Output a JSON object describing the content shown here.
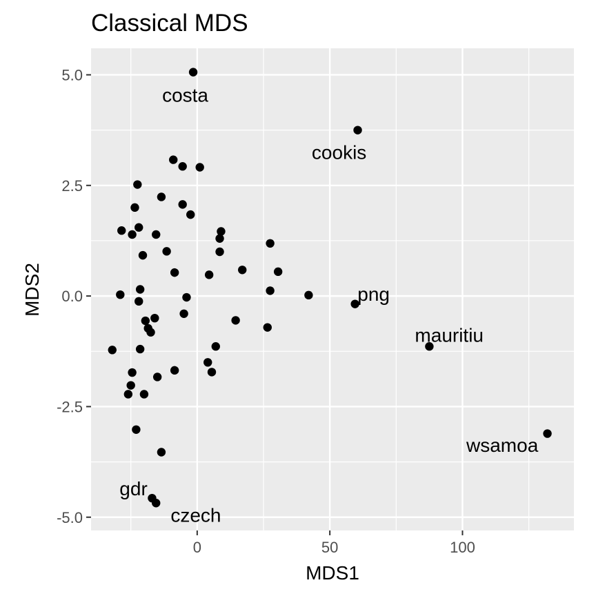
{
  "chart_data": {
    "type": "scatter",
    "title": "Classical MDS",
    "xlabel": "MDS1",
    "ylabel": "MDS2",
    "xlim": [
      -40,
      142
    ],
    "ylim": [
      -5.3,
      5.6
    ],
    "grid": true,
    "x_ticks": [
      0,
      50,
      100
    ],
    "y_ticks": [
      5.0,
      2.5,
      0.0,
      -2.5,
      -5.0
    ],
    "x_tick_labels": [
      "0",
      "50",
      "100"
    ],
    "y_tick_labels": [
      "5.0",
      "2.5",
      "0.0",
      "-2.5",
      "-5.0"
    ],
    "colors": {
      "panel": "#ebebeb",
      "grid_major": "#ffffff",
      "point": "#000000",
      "tick": "#333333"
    },
    "points": [
      {
        "x": -1.5,
        "y": 5.06
      },
      {
        "x": 60.5,
        "y": 3.75
      },
      {
        "x": -9.0,
        "y": 3.08
      },
      {
        "x": -5.5,
        "y": 2.93
      },
      {
        "x": 1.0,
        "y": 2.91
      },
      {
        "x": -22.5,
        "y": 2.52
      },
      {
        "x": -13.5,
        "y": 2.24
      },
      {
        "x": -23.5,
        "y": 2.0
      },
      {
        "x": -5.5,
        "y": 2.07
      },
      {
        "x": -2.5,
        "y": 1.84
      },
      {
        "x": -22.0,
        "y": 1.55
      },
      {
        "x": -28.5,
        "y": 1.48
      },
      {
        "x": -24.5,
        "y": 1.39
      },
      {
        "x": -15.5,
        "y": 1.39
      },
      {
        "x": 9.0,
        "y": 1.46
      },
      {
        "x": 8.5,
        "y": 1.3
      },
      {
        "x": 27.5,
        "y": 1.19
      },
      {
        "x": -11.5,
        "y": 1.01
      },
      {
        "x": 8.5,
        "y": 1.0
      },
      {
        "x": -20.5,
        "y": 0.92
      },
      {
        "x": 17.0,
        "y": 0.59
      },
      {
        "x": 30.5,
        "y": 0.55
      },
      {
        "x": -8.5,
        "y": 0.53
      },
      {
        "x": 4.5,
        "y": 0.48
      },
      {
        "x": -21.5,
        "y": 0.15
      },
      {
        "x": 27.5,
        "y": 0.12
      },
      {
        "x": -29.0,
        "y": 0.03
      },
      {
        "x": -4.0,
        "y": -0.03
      },
      {
        "x": 42.0,
        "y": 0.02
      },
      {
        "x": 59.5,
        "y": -0.18
      },
      {
        "x": -22.0,
        "y": -0.12
      },
      {
        "x": -5.0,
        "y": -0.4
      },
      {
        "x": -16.0,
        "y": -0.5
      },
      {
        "x": -19.5,
        "y": -0.56
      },
      {
        "x": 14.5,
        "y": -0.55
      },
      {
        "x": -18.5,
        "y": -0.73
      },
      {
        "x": -17.5,
        "y": -0.82
      },
      {
        "x": 26.5,
        "y": -0.71
      },
      {
        "x": 87.5,
        "y": -1.14
      },
      {
        "x": 7.0,
        "y": -1.14
      },
      {
        "x": -32.0,
        "y": -1.22
      },
      {
        "x": -21.5,
        "y": -1.2
      },
      {
        "x": 4.0,
        "y": -1.5
      },
      {
        "x": -8.5,
        "y": -1.68
      },
      {
        "x": 5.5,
        "y": -1.72
      },
      {
        "x": -24.5,
        "y": -1.73
      },
      {
        "x": -15.0,
        "y": -1.83
      },
      {
        "x": -25.0,
        "y": -2.02
      },
      {
        "x": -26.0,
        "y": -2.22
      },
      {
        "x": -20.0,
        "y": -2.22
      },
      {
        "x": 132.0,
        "y": -3.11
      },
      {
        "x": -23.0,
        "y": -3.02
      },
      {
        "x": -13.5,
        "y": -3.53
      },
      {
        "x": -17.0,
        "y": -4.57
      },
      {
        "x": -15.5,
        "y": -4.68
      }
    ],
    "annotations": [
      {
        "text": "costa",
        "x": -4.5,
        "y": 4.55,
        "anchor": "middle"
      },
      {
        "text": "cookis",
        "x": 53.5,
        "y": 3.25,
        "anchor": "middle"
      },
      {
        "text": "png",
        "x": 66.5,
        "y": 0.05,
        "anchor": "middle"
      },
      {
        "text": "mauritiu",
        "x": 95.0,
        "y": -0.88,
        "anchor": "middle"
      },
      {
        "text": "wsamoa",
        "x": 115.0,
        "y": -3.37,
        "anchor": "middle"
      },
      {
        "text": "gdr",
        "x": -24.0,
        "y": -4.35,
        "anchor": "middle"
      },
      {
        "text": "czech",
        "x": -0.5,
        "y": -4.95,
        "anchor": "middle"
      }
    ]
  }
}
